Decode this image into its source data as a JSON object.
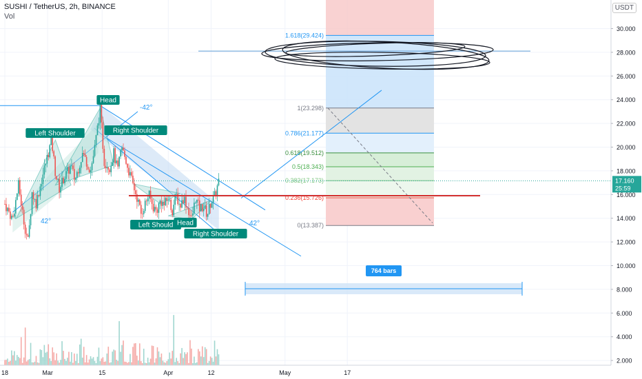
{
  "header": {
    "title": "SUSHI / TetherUS, 2h, BINANCE",
    "subtitle": "Vol",
    "currency": "USDT"
  },
  "chart_data": {
    "type": "candlestick",
    "ylim": [
      1.4,
      32.4
    ],
    "y_ticks": [
      "30.000",
      "28.000",
      "26.000",
      "24.000",
      "22.000",
      "20.000",
      "18.000",
      "16.000",
      "14.000",
      "12.000",
      "10.000",
      "8.000",
      "6.000",
      "4.000",
      "2.000"
    ],
    "y_tick_values": [
      30,
      28,
      26,
      24,
      22,
      20,
      18,
      16,
      14,
      12,
      10,
      8,
      6,
      4,
      2
    ],
    "x_ticks": [
      {
        "label": "18",
        "day": 0
      },
      {
        "label": "Mar",
        "day": 11
      },
      {
        "label": "15",
        "day": 25
      },
      {
        "label": "Apr",
        "day": 42
      },
      {
        "label": "12",
        "day": 53
      },
      {
        "label": "May",
        "day": 72
      },
      {
        "label": "17",
        "day": 88
      }
    ],
    "x_range_days": [
      -0.5,
      140
    ],
    "price": {
      "last": "17.160",
      "countdown": "25:59",
      "last_value": 17.16,
      "anchors": [
        [
          0,
          15.2
        ],
        [
          2,
          13.9
        ],
        [
          3.5,
          16.8
        ],
        [
          5,
          13.5
        ],
        [
          6,
          12.0
        ],
        [
          7,
          16.2
        ],
        [
          8,
          15.2
        ],
        [
          10,
          18.0
        ],
        [
          12,
          20.6
        ],
        [
          13,
          17.8
        ],
        [
          14,
          16.5
        ],
        [
          15,
          17.3
        ],
        [
          17,
          18.4
        ],
        [
          18,
          17.2
        ],
        [
          20,
          19.5
        ],
        [
          22,
          18.0
        ],
        [
          23,
          19.7
        ],
        [
          24.5,
          23.3
        ],
        [
          25.5,
          18.8
        ],
        [
          27,
          18.3
        ],
        [
          28,
          19.5
        ],
        [
          29,
          18.0
        ],
        [
          30,
          20.0
        ],
        [
          31,
          19.0
        ],
        [
          32,
          17.8
        ],
        [
          34,
          15.7
        ],
        [
          35,
          14.4
        ],
        [
          36,
          15.2
        ],
        [
          37,
          16.0
        ],
        [
          38,
          15.0
        ],
        [
          39,
          14.6
        ],
        [
          40,
          15.5
        ],
        [
          41,
          15.1
        ],
        [
          42,
          15.7
        ],
        [
          43,
          14.6
        ],
        [
          44,
          16.0
        ],
        [
          45,
          15.0
        ],
        [
          46,
          15.8
        ],
        [
          47,
          14.8
        ],
        [
          48,
          13.9
        ],
        [
          49,
          15.7
        ],
        [
          50,
          14.8
        ],
        [
          51,
          15.0
        ],
        [
          52,
          14.3
        ],
        [
          53,
          15.4
        ],
        [
          54,
          15.9
        ],
        [
          55,
          17.16
        ]
      ],
      "volume_max": 8.7
    },
    "annotations": {
      "labels": [
        "Head",
        "Left Shoulder",
        "Right Shoulder",
        "Left Should",
        "Head",
        "Right Shoulder"
      ],
      "angles": [
        "-42°",
        "42°",
        "42°"
      ],
      "bars_label": "764 bars"
    },
    "fibonacci": {
      "levels": [
        {
          "label": "1.618(29.424)",
          "value": 29.424,
          "color": "#2196f3"
        },
        {
          "label": "1(23.298)",
          "value": 23.298,
          "color": "#787b86"
        },
        {
          "label": "0.786(21.177)",
          "value": 21.177,
          "color": "#2196f3"
        },
        {
          "label": "0.618(19.512)",
          "value": 19.512,
          "color": "#388e3c"
        },
        {
          "label": "0.5(18.343)",
          "value": 18.343,
          "color": "#4caf50"
        },
        {
          "label": "0.382(17.173)",
          "value": 17.173,
          "color": "#81c784"
        },
        {
          "label": "0.236(15.726)",
          "value": 15.726,
          "color": "#f44336"
        },
        {
          "label": "0(13.387)",
          "value": 13.387,
          "color": "#787b86"
        }
      ]
    },
    "support_level": 15.9
  }
}
